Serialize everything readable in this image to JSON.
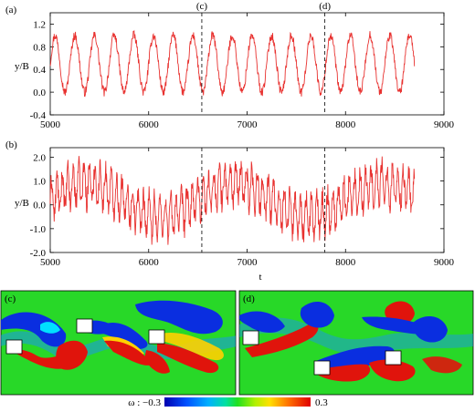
{
  "figure": {
    "colorbar": {
      "label": "ω : −0.3",
      "max_label": "0.3",
      "min": -0.3,
      "max": 0.3
    },
    "snapshot_c": {
      "label": "(c)"
    },
    "snapshot_d": {
      "label": "(d)"
    }
  },
  "chart_data": [
    {
      "type": "line",
      "panel_label": "(a)",
      "title": "",
      "xlabel": "",
      "ylabel": "y/B",
      "xlim": [
        5000,
        9000
      ],
      "ylim": [
        -0.4,
        1.4
      ],
      "xticks": [
        "5000",
        "6000",
        "7000",
        "8000",
        "9000"
      ],
      "yticks": [
        "-0.4",
        "0.0",
        "0.4",
        "0.8",
        "1.2"
      ],
      "grid": false,
      "series_color": "#e8312f",
      "signal": {
        "x_start": 5000,
        "x_end": 8700,
        "mean": 0.5,
        "amplitude": 0.5,
        "period": 200,
        "noise": 0.08
      },
      "markers": [
        {
          "label": "(c)",
          "x": 6540
        },
        {
          "label": "(d)",
          "x": 7790
        }
      ]
    },
    {
      "type": "line",
      "panel_label": "(b)",
      "title": "",
      "xlabel": "t",
      "ylabel": "y/B",
      "xlim": [
        5000,
        9000
      ],
      "ylim": [
        -2.0,
        2.4
      ],
      "xticks": [
        "5000",
        "6000",
        "7000",
        "8000",
        "9000"
      ],
      "yticks": [
        "-2.0",
        "-1.0",
        "0.0",
        "1.0",
        "2.0"
      ],
      "grid": false,
      "series_color": "#e8312f",
      "signal": {
        "x_start": 5000,
        "x_end": 8700,
        "mean": 0.2,
        "amplitude": 0.8,
        "period": 55,
        "noise": 0.45
      },
      "markers": [
        {
          "x": 6540
        },
        {
          "x": 7790
        }
      ]
    }
  ]
}
